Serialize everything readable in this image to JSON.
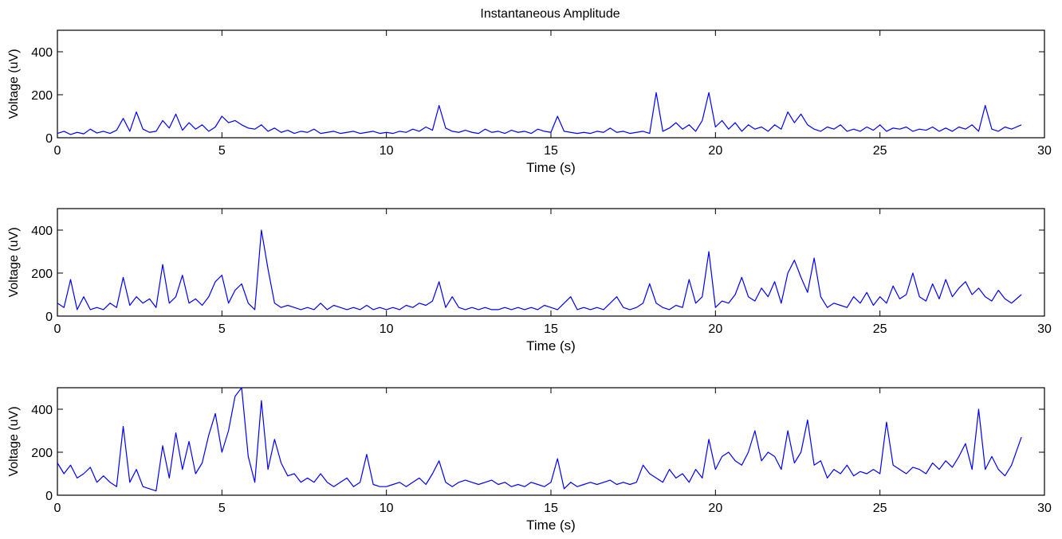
{
  "figure": {
    "title": "Instantaneous Amplitude",
    "background": "#ffffff",
    "line_color": "#0000ff",
    "axis_color": "#000000"
  },
  "chart_data": [
    {
      "type": "line",
      "title": "Instantaneous Amplitude",
      "xlabel": "Time  (s)",
      "ylabel": "Voltage (uV)",
      "xlim": [
        0,
        30
      ],
      "ylim": [
        0,
        500
      ],
      "xticks": [
        0,
        5,
        10,
        15,
        20,
        25,
        30
      ],
      "yticks": [
        0,
        200,
        400
      ],
      "grid": false,
      "series": [
        {
          "color": "#0000ff",
          "x": [
            0,
            0.2,
            0.4,
            0.6,
            0.8,
            1,
            1.2,
            1.4,
            1.6,
            1.8,
            2,
            2.2,
            2.4,
            2.6,
            2.8,
            3,
            3.2,
            3.4,
            3.6,
            3.8,
            4,
            4.2,
            4.4,
            4.6,
            4.8,
            5,
            5.2,
            5.4,
            5.6,
            5.8,
            6,
            6.2,
            6.4,
            6.6,
            6.8,
            7,
            7.2,
            7.4,
            7.6,
            7.8,
            8,
            8.2,
            8.4,
            8.6,
            8.8,
            9,
            9.2,
            9.4,
            9.6,
            9.8,
            10,
            10.2,
            10.4,
            10.6,
            10.8,
            11,
            11.2,
            11.4,
            11.6,
            11.8,
            12,
            12.2,
            12.4,
            12.6,
            12.8,
            13,
            13.2,
            13.4,
            13.6,
            13.8,
            14,
            14.2,
            14.4,
            14.6,
            14.8,
            15,
            15.2,
            15.4,
            15.6,
            15.8,
            16,
            16.2,
            16.4,
            16.6,
            16.8,
            17,
            17.2,
            17.4,
            17.6,
            17.8,
            18,
            18.2,
            18.4,
            18.6,
            18.8,
            19,
            19.2,
            19.4,
            19.6,
            19.8,
            20,
            20.2,
            20.4,
            20.6,
            20.8,
            21,
            21.2,
            21.4,
            21.6,
            21.8,
            22,
            22.2,
            22.4,
            22.6,
            22.8,
            23,
            23.2,
            23.4,
            23.6,
            23.8,
            24,
            24.2,
            24.4,
            24.6,
            24.8,
            25,
            25.2,
            25.4,
            25.6,
            25.8,
            26,
            26.2,
            26.4,
            26.6,
            26.8,
            27,
            27.2,
            27.4,
            27.6,
            27.8,
            28,
            28.2,
            28.4,
            28.6,
            28.8,
            29,
            29.3
          ],
          "y": [
            20,
            30,
            15,
            25,
            18,
            40,
            22,
            30,
            20,
            35,
            90,
            30,
            120,
            40,
            25,
            30,
            80,
            45,
            110,
            35,
            70,
            40,
            60,
            30,
            50,
            100,
            70,
            80,
            60,
            45,
            40,
            60,
            30,
            45,
            25,
            35,
            20,
            30,
            25,
            40,
            20,
            25,
            30,
            20,
            25,
            30,
            20,
            25,
            30,
            20,
            25,
            20,
            30,
            25,
            40,
            30,
            50,
            35,
            150,
            45,
            30,
            25,
            35,
            25,
            20,
            40,
            25,
            30,
            20,
            35,
            25,
            30,
            20,
            40,
            30,
            25,
            100,
            30,
            25,
            20,
            25,
            20,
            30,
            25,
            45,
            25,
            30,
            20,
            25,
            30,
            20,
            210,
            30,
            45,
            70,
            40,
            60,
            30,
            80,
            210,
            50,
            80,
            40,
            70,
            30,
            60,
            40,
            50,
            30,
            60,
            40,
            120,
            70,
            110,
            60,
            40,
            30,
            50,
            40,
            60,
            30,
            40,
            30,
            50,
            35,
            60,
            30,
            45,
            40,
            50,
            30,
            40,
            35,
            50,
            30,
            45,
            30,
            50,
            40,
            60,
            30,
            150,
            40,
            30,
            50,
            40,
            60
          ]
        }
      ]
    },
    {
      "type": "line",
      "xlabel": "Time  (s)",
      "ylabel": "Voltage (uV)",
      "xlim": [
        0,
        30
      ],
      "ylim": [
        0,
        500
      ],
      "xticks": [
        0,
        5,
        10,
        15,
        20,
        25,
        30
      ],
      "yticks": [
        0,
        200,
        400
      ],
      "grid": false,
      "series": [
        {
          "color": "#0000ff",
          "x": [
            0,
            0.2,
            0.4,
            0.6,
            0.8,
            1,
            1.2,
            1.4,
            1.6,
            1.8,
            2,
            2.2,
            2.4,
            2.6,
            2.8,
            3,
            3.2,
            3.4,
            3.6,
            3.8,
            4,
            4.2,
            4.4,
            4.6,
            4.8,
            5,
            5.2,
            5.4,
            5.6,
            5.8,
            6,
            6.2,
            6.4,
            6.6,
            6.8,
            7,
            7.2,
            7.4,
            7.6,
            7.8,
            8,
            8.2,
            8.4,
            8.6,
            8.8,
            9,
            9.2,
            9.4,
            9.6,
            9.8,
            10,
            10.2,
            10.4,
            10.6,
            10.8,
            11,
            11.2,
            11.4,
            11.6,
            11.8,
            12,
            12.2,
            12.4,
            12.6,
            12.8,
            13,
            13.2,
            13.4,
            13.6,
            13.8,
            14,
            14.2,
            14.4,
            14.6,
            14.8,
            15,
            15.2,
            15.4,
            15.6,
            15.8,
            16,
            16.2,
            16.4,
            16.6,
            16.8,
            17,
            17.2,
            17.4,
            17.6,
            17.8,
            18,
            18.2,
            18.4,
            18.6,
            18.8,
            19,
            19.2,
            19.4,
            19.6,
            19.8,
            20,
            20.2,
            20.4,
            20.6,
            20.8,
            21,
            21.2,
            21.4,
            21.6,
            21.8,
            22,
            22.2,
            22.4,
            22.6,
            22.8,
            23,
            23.2,
            23.4,
            23.6,
            23.8,
            24,
            24.2,
            24.4,
            24.6,
            24.8,
            25,
            25.2,
            25.4,
            25.6,
            25.8,
            26,
            26.2,
            26.4,
            26.6,
            26.8,
            27,
            27.2,
            27.4,
            27.6,
            27.8,
            28,
            28.2,
            28.4,
            28.6,
            28.8,
            29,
            29.3
          ],
          "y": [
            60,
            40,
            170,
            30,
            90,
            30,
            40,
            30,
            60,
            40,
            180,
            50,
            90,
            60,
            80,
            40,
            240,
            60,
            90,
            190,
            60,
            80,
            50,
            90,
            160,
            190,
            60,
            120,
            150,
            60,
            30,
            400,
            220,
            60,
            40,
            50,
            40,
            30,
            40,
            30,
            60,
            30,
            50,
            40,
            30,
            40,
            30,
            50,
            30,
            40,
            30,
            40,
            30,
            50,
            40,
            60,
            50,
            70,
            160,
            40,
            90,
            40,
            30,
            40,
            30,
            40,
            30,
            30,
            40,
            30,
            40,
            30,
            40,
            30,
            50,
            40,
            30,
            60,
            90,
            30,
            40,
            30,
            40,
            30,
            60,
            90,
            40,
            30,
            40,
            60,
            150,
            60,
            40,
            30,
            50,
            40,
            170,
            60,
            90,
            300,
            40,
            70,
            60,
            100,
            180,
            90,
            70,
            130,
            90,
            160,
            60,
            200,
            260,
            180,
            110,
            270,
            90,
            40,
            60,
            50,
            40,
            90,
            60,
            110,
            50,
            90,
            60,
            140,
            80,
            100,
            200,
            90,
            70,
            150,
            80,
            170,
            90,
            130,
            160,
            100,
            130,
            90,
            70,
            120,
            80,
            60,
            100
          ]
        }
      ]
    },
    {
      "type": "line",
      "xlabel": "Time  (s)",
      "ylabel": "Voltage (uV)",
      "xlim": [
        0,
        30
      ],
      "ylim": [
        0,
        500
      ],
      "xticks": [
        0,
        5,
        10,
        15,
        20,
        25,
        30
      ],
      "yticks": [
        0,
        200,
        400
      ],
      "grid": false,
      "series": [
        {
          "color": "#0000ff",
          "x": [
            0,
            0.2,
            0.4,
            0.6,
            0.8,
            1,
            1.2,
            1.4,
            1.6,
            1.8,
            2,
            2.2,
            2.4,
            2.6,
            2.8,
            3,
            3.2,
            3.4,
            3.6,
            3.8,
            4,
            4.2,
            4.4,
            4.6,
            4.8,
            5,
            5.2,
            5.4,
            5.6,
            5.8,
            6,
            6.2,
            6.4,
            6.6,
            6.8,
            7,
            7.2,
            7.4,
            7.6,
            7.8,
            8,
            8.2,
            8.4,
            8.6,
            8.8,
            9,
            9.2,
            9.4,
            9.6,
            9.8,
            10,
            10.2,
            10.4,
            10.6,
            10.8,
            11,
            11.2,
            11.4,
            11.6,
            11.8,
            12,
            12.2,
            12.4,
            12.6,
            12.8,
            13,
            13.2,
            13.4,
            13.6,
            13.8,
            14,
            14.2,
            14.4,
            14.6,
            14.8,
            15,
            15.2,
            15.4,
            15.6,
            15.8,
            16,
            16.2,
            16.4,
            16.6,
            16.8,
            17,
            17.2,
            17.4,
            17.6,
            17.8,
            18,
            18.2,
            18.4,
            18.6,
            18.8,
            19,
            19.2,
            19.4,
            19.6,
            19.8,
            20,
            20.2,
            20.4,
            20.6,
            20.8,
            21,
            21.2,
            21.4,
            21.6,
            21.8,
            22,
            22.2,
            22.4,
            22.6,
            22.8,
            23,
            23.2,
            23.4,
            23.6,
            23.8,
            24,
            24.2,
            24.4,
            24.6,
            24.8,
            25,
            25.2,
            25.4,
            25.6,
            25.8,
            26,
            26.2,
            26.4,
            26.6,
            26.8,
            27,
            27.2,
            27.4,
            27.6,
            27.8,
            28,
            28.2,
            28.4,
            28.6,
            28.8,
            29,
            29.3
          ],
          "y": [
            150,
            100,
            140,
            80,
            100,
            130,
            60,
            90,
            60,
            40,
            320,
            60,
            120,
            40,
            30,
            20,
            230,
            80,
            290,
            120,
            250,
            100,
            150,
            280,
            380,
            200,
            300,
            460,
            500,
            180,
            60,
            440,
            120,
            260,
            150,
            90,
            100,
            60,
            80,
            60,
            100,
            60,
            40,
            60,
            80,
            40,
            60,
            190,
            50,
            40,
            40,
            50,
            60,
            40,
            60,
            80,
            50,
            100,
            160,
            60,
            40,
            60,
            70,
            60,
            50,
            60,
            70,
            50,
            60,
            40,
            50,
            40,
            60,
            50,
            40,
            60,
            170,
            30,
            60,
            40,
            50,
            60,
            50,
            60,
            70,
            50,
            60,
            50,
            60,
            140,
            100,
            80,
            60,
            120,
            80,
            100,
            60,
            120,
            80,
            260,
            120,
            180,
            200,
            160,
            140,
            200,
            300,
            160,
            200,
            180,
            120,
            300,
            150,
            200,
            350,
            140,
            160,
            80,
            120,
            100,
            140,
            90,
            110,
            100,
            120,
            100,
            340,
            140,
            120,
            100,
            130,
            120,
            100,
            150,
            120,
            160,
            130,
            180,
            240,
            120,
            400,
            120,
            180,
            120,
            90,
            140,
            270
          ]
        }
      ]
    }
  ]
}
